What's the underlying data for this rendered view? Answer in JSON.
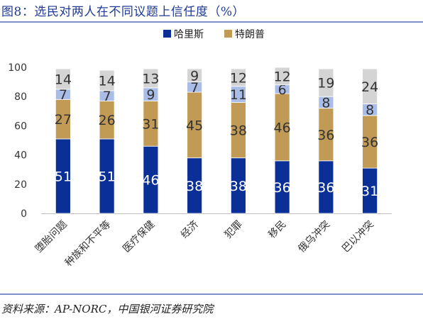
{
  "figure": {
    "title": "图8：选民对两人在不同议题上信任度（%）",
    "source": "资料来源：AP-NORC，中国银河证券研究院"
  },
  "chart_data": {
    "type": "bar",
    "stacked": true,
    "categories": [
      "堕胎问题",
      "种族和不平等",
      "医疗保健",
      "经济",
      "犯罪",
      "移民",
      "俄乌冲突",
      "巴以冲突"
    ],
    "series": [
      {
        "name": "哈里斯",
        "values": [
          51,
          51,
          46,
          38,
          38,
          36,
          36,
          31
        ],
        "color": "#0a2f96",
        "show_in_legend": true
      },
      {
        "name": "特朗普",
        "values": [
          27,
          26,
          31,
          45,
          38,
          46,
          36,
          36
        ],
        "color": "#c19a55",
        "show_in_legend": true
      },
      {
        "name": "",
        "values": [
          7,
          7,
          9,
          7,
          11,
          6,
          8,
          8
        ],
        "color": "#a9bde8",
        "show_in_legend": false
      },
      {
        "name": "",
        "values": [
          14,
          14,
          13,
          9,
          12,
          12,
          19,
          24
        ],
        "color": "#d4d4d4",
        "show_in_legend": false
      }
    ],
    "ylim": [
      0,
      100
    ],
    "yticks": [
      0,
      20,
      40,
      60,
      80,
      100
    ],
    "xlabel": "",
    "ylabel": "",
    "legend_position": "top-center",
    "grid": false
  }
}
